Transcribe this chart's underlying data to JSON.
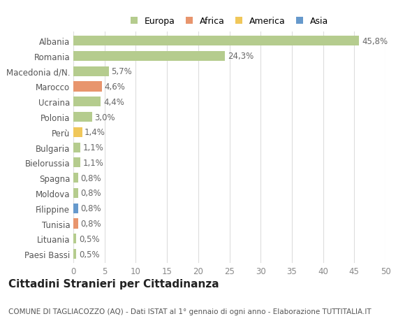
{
  "categories": [
    "Albania",
    "Romania",
    "Macedonia d/N.",
    "Marocco",
    "Ucraina",
    "Polonia",
    "Perù",
    "Bulgaria",
    "Bielorussia",
    "Spagna",
    "Moldova",
    "Filippine",
    "Tunisia",
    "Lituania",
    "Paesi Bassi"
  ],
  "values": [
    45.8,
    24.3,
    5.7,
    4.6,
    4.4,
    3.0,
    1.4,
    1.1,
    1.1,
    0.8,
    0.8,
    0.8,
    0.8,
    0.5,
    0.5
  ],
  "labels": [
    "45,8%",
    "24,3%",
    "5,7%",
    "4,6%",
    "4,4%",
    "3,0%",
    "1,4%",
    "1,1%",
    "1,1%",
    "0,8%",
    "0,8%",
    "0,8%",
    "0,8%",
    "0,5%",
    "0,5%"
  ],
  "continent": [
    "Europa",
    "Europa",
    "Europa",
    "Africa",
    "Europa",
    "Europa",
    "America",
    "Europa",
    "Europa",
    "Europa",
    "Europa",
    "Asia",
    "Africa",
    "Europa",
    "Europa"
  ],
  "continent_colors": {
    "Europa": "#b5cc8e",
    "Africa": "#e8956d",
    "America": "#f0c75a",
    "Asia": "#6699cc"
  },
  "legend_order": [
    "Europa",
    "Africa",
    "America",
    "Asia"
  ],
  "legend_colors": [
    "#b5cc8e",
    "#e8956d",
    "#f0c75a",
    "#6699cc"
  ],
  "title": "Cittadini Stranieri per Cittadinanza",
  "subtitle": "COMUNE DI TAGLIACOZZO (AQ) - Dati ISTAT al 1° gennaio di ogni anno - Elaborazione TUTTITALIA.IT",
  "xlim": [
    0,
    50
  ],
  "xticks": [
    0,
    5,
    10,
    15,
    20,
    25,
    30,
    35,
    40,
    45,
    50
  ],
  "bg_color": "#ffffff",
  "grid_color": "#dddddd",
  "bar_height": 0.65,
  "label_fontsize": 8.5,
  "ytick_fontsize": 8.5,
  "xtick_fontsize": 8.5,
  "title_fontsize": 11,
  "subtitle_fontsize": 7.5
}
